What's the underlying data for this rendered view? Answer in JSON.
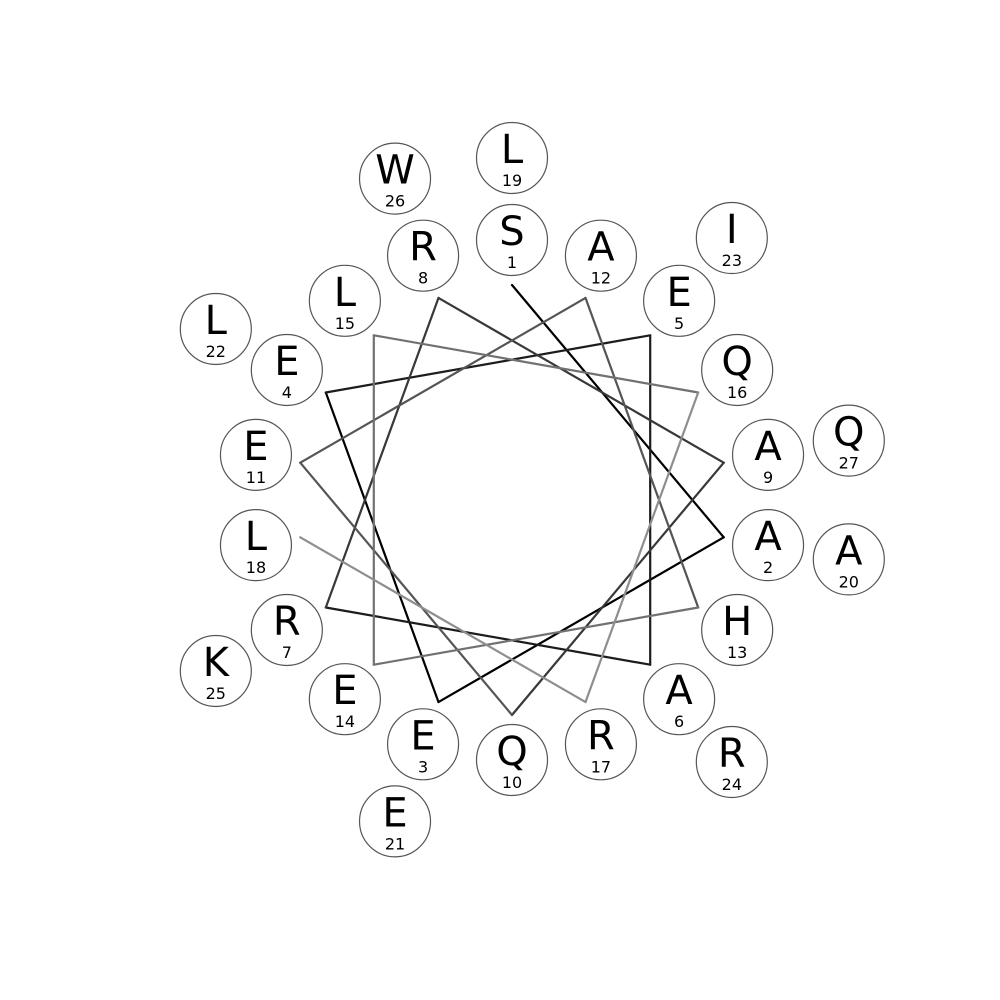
{
  "sequence": [
    {
      "n": "1",
      "aa": "S"
    },
    {
      "n": "2",
      "aa": "A"
    },
    {
      "n": "3",
      "aa": "E"
    },
    {
      "n": "4",
      "aa": "E"
    },
    {
      "n": "5",
      "aa": "E"
    },
    {
      "n": "6",
      "aa": "A"
    },
    {
      "n": "7",
      "aa": "R"
    },
    {
      "n": "8",
      "aa": "R"
    },
    {
      "n": "9",
      "aa": "A"
    },
    {
      "n": "10",
      "aa": "Q"
    },
    {
      "n": "11",
      "aa": "E"
    },
    {
      "n": "12",
      "aa": "A"
    },
    {
      "n": "13",
      "aa": "H"
    },
    {
      "n": "14",
      "aa": "E"
    },
    {
      "n": "15",
      "aa": "L"
    },
    {
      "n": "16",
      "aa": "Q"
    },
    {
      "n": "17",
      "aa": "R"
    },
    {
      "n": "18",
      "aa": "L"
    },
    {
      "n": "19",
      "aa": "L"
    },
    {
      "n": "20",
      "aa": "A"
    },
    {
      "n": "21",
      "aa": "E"
    },
    {
      "n": "22",
      "aa": "L"
    },
    {
      "n": "23",
      "aa": "I"
    },
    {
      "n": "24",
      "aa": "R"
    },
    {
      "n": "25",
      "aa": "K"
    },
    {
      "n": "26",
      "aa": "W"
    },
    {
      "n": "27",
      "aa": "Q"
    }
  ],
  "angle_step_deg": 100,
  "line_colors": [
    "#000000",
    "#1c1c1c",
    "#383838",
    "#555555",
    "#717171",
    "#8e8e8e"
  ]
}
